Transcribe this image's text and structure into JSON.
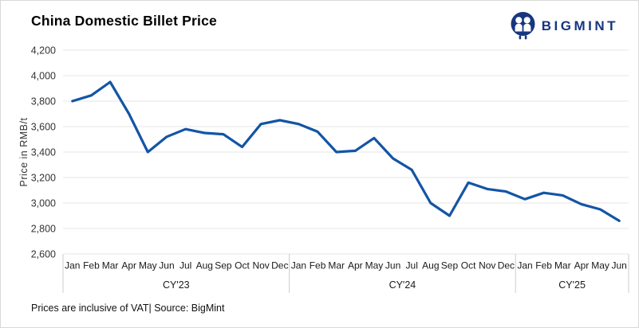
{
  "title": "China Domestic Billet Price",
  "logo": {
    "text": "BIGMINT"
  },
  "footer": "Prices are inclusive of VAT| Source: BigMint",
  "colors": {
    "line": "#1355a5",
    "logo": "#17367f",
    "grid": "#e4e4e4",
    "separator": "#cccccc",
    "axis_text": "#333333",
    "label_text": "#1a1a1a"
  },
  "chart_data": {
    "type": "line",
    "title": "China Domestic Billet Price",
    "xlabel": "",
    "ylabel": "Price in RMB/t",
    "ylim": [
      2600,
      4200
    ],
    "ytick_step": 200,
    "ytick_labels": [
      "2,600",
      "2,800",
      "3,000",
      "3,200",
      "3,400",
      "3,600",
      "3,800",
      "4,000",
      "4,200"
    ],
    "grid": "horizontal",
    "legend": "none",
    "groups": [
      {
        "year": "CY'23",
        "months": [
          "Jan",
          "Feb",
          "Mar",
          "Apr",
          "May",
          "Jun",
          "Jul",
          "Aug",
          "Sep",
          "Oct",
          "Nov",
          "Dec"
        ]
      },
      {
        "year": "CY'24",
        "months": [
          "Jan",
          "Feb",
          "Mar",
          "Apr",
          "May",
          "Jun",
          "Jul",
          "Aug",
          "Sep",
          "Oct",
          "Nov",
          "Dec"
        ]
      },
      {
        "year": "CY'25",
        "months": [
          "Jan",
          "Feb",
          "Mar",
          "Apr",
          "May",
          "Jun"
        ]
      }
    ],
    "series": [
      {
        "name": "China Domestic Billet Price (RMB/t)",
        "values": [
          3800,
          3845,
          3950,
          3700,
          3400,
          3520,
          3580,
          3550,
          3540,
          3440,
          3620,
          3650,
          3620,
          3560,
          3400,
          3410,
          3510,
          3350,
          3260,
          3000,
          2900,
          3160,
          3110,
          3090,
          3030,
          3080,
          3060,
          2990,
          2950,
          2860
        ]
      }
    ]
  }
}
